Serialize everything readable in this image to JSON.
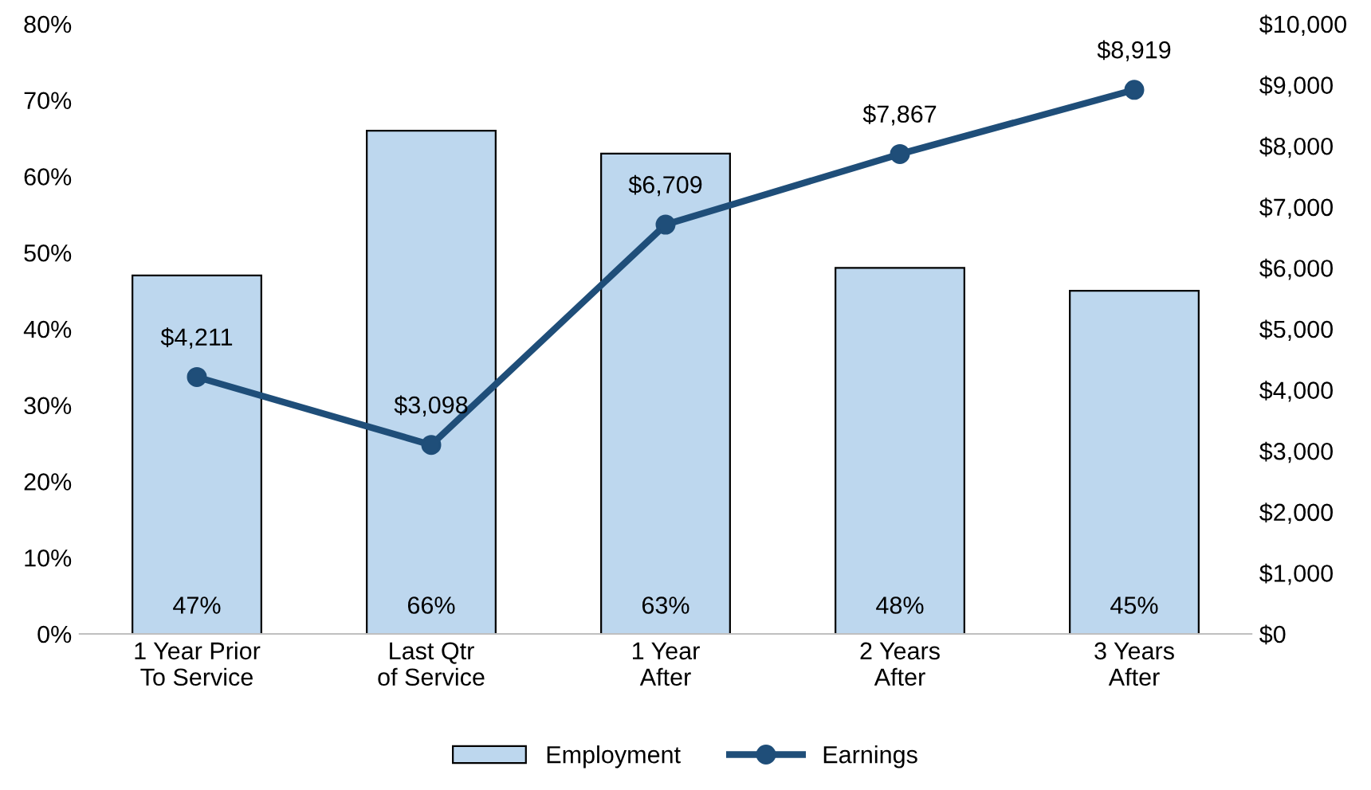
{
  "chart_data": {
    "type": "bar",
    "categories": [
      "1 Year Prior\nTo Service",
      "Last Qtr\nof Service",
      "1 Year\nAfter",
      "2 Years\nAfter",
      "3 Years\nAfter"
    ],
    "series": [
      {
        "name": "Employment",
        "color": "#bdd7ee",
        "values": [
          47,
          66,
          63,
          48,
          45
        ],
        "value_labels": [
          "47%",
          "66%",
          "63%",
          "48%",
          "45%"
        ]
      },
      {
        "name": "Earnings",
        "type": "line",
        "axis": "y2",
        "color": "#1f4e79",
        "values": [
          4211,
          3098,
          6709,
          7867,
          8919
        ],
        "value_labels": [
          "$4,211",
          "$3,098",
          "$6,709",
          "$7,867",
          "$8,919"
        ]
      }
    ],
    "ylim": [
      0,
      80
    ],
    "yticks": [
      {
        "value": 0,
        "label": "0%"
      },
      {
        "value": 10,
        "label": "10%"
      },
      {
        "value": 20,
        "label": "20%"
      },
      {
        "value": 30,
        "label": "30%"
      },
      {
        "value": 40,
        "label": "40%"
      },
      {
        "value": 50,
        "label": "50%"
      },
      {
        "value": 60,
        "label": "60%"
      },
      {
        "value": 70,
        "label": "70%"
      },
      {
        "value": 80,
        "label": "80%"
      }
    ],
    "y2lim": [
      0,
      10000
    ],
    "y2ticks": [
      {
        "value": 0,
        "label": "$0"
      },
      {
        "value": 1000,
        "label": "$1,000"
      },
      {
        "value": 2000,
        "label": "$2,000"
      },
      {
        "value": 3000,
        "label": "$3,000"
      },
      {
        "value": 4000,
        "label": "$4,000"
      },
      {
        "value": 5000,
        "label": "$5,000"
      },
      {
        "value": 6000,
        "label": "$6,000"
      },
      {
        "value": 7000,
        "label": "$7,000"
      },
      {
        "value": 8000,
        "label": "$8,000"
      },
      {
        "value": 9000,
        "label": "$9,000"
      },
      {
        "value": 10000,
        "label": "$10,000"
      }
    ],
    "grid": false,
    "legend": "bottom",
    "marker": "circle",
    "line_style": "solid"
  }
}
